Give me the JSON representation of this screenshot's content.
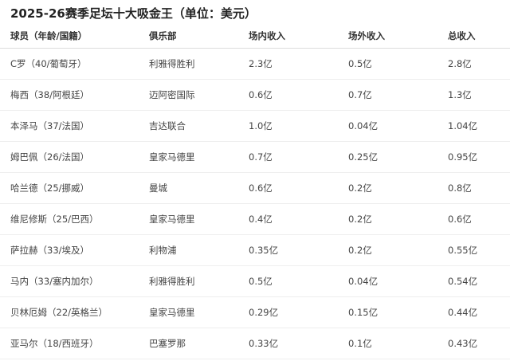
{
  "title": "2025-26赛季足坛十大吸金王（单位：美元）",
  "headers": [
    "球员（年龄/国籍）",
    "俱乐部",
    "场内收入",
    "场外收入",
    "总收入"
  ],
  "rows": [
    [
      "C罗（40/葡萄牙）",
      "利雅得胜利",
      "2.3亿",
      "0.5亿",
      "2.8亿"
    ],
    [
      "梅西（38/阿根廷）",
      "迈阿密国际",
      "0.6亿",
      "0.7亿",
      "1.3亿"
    ],
    [
      "本泽马（37/法国）",
      "吉达联合",
      "1.0亿",
      "0.04亿",
      "1.04亿"
    ],
    [
      "姆巴佩（26/法国）",
      "皇家马德里",
      "0.7亿",
      "0.25亿",
      "0.95亿"
    ],
    [
      "哈兰德（25/挪威）",
      "曼城",
      "0.6亿",
      "0.2亿",
      "0.8亿"
    ],
    [
      "维尼修斯（25/巴西）",
      "皇家马德里",
      "0.4亿",
      "0.2亿",
      "0.6亿"
    ],
    [
      "萨拉赫（33/埃及）",
      "利物浦",
      "0.35亿",
      "0.2亿",
      "0.55亿"
    ],
    [
      "马内（33/塞内加尔）",
      "利雅得胜利",
      "0.5亿",
      "0.04亿",
      "0.54亿"
    ],
    [
      "贝林厄姆（22/英格兰）",
      "皇家马德里",
      "0.29亿",
      "0.15亿",
      "0.44亿"
    ],
    [
      "亚马尔（18/西班牙）",
      "巴塞罗那",
      "0.33亿",
      "0.1亿",
      "0.43亿"
    ]
  ]
}
